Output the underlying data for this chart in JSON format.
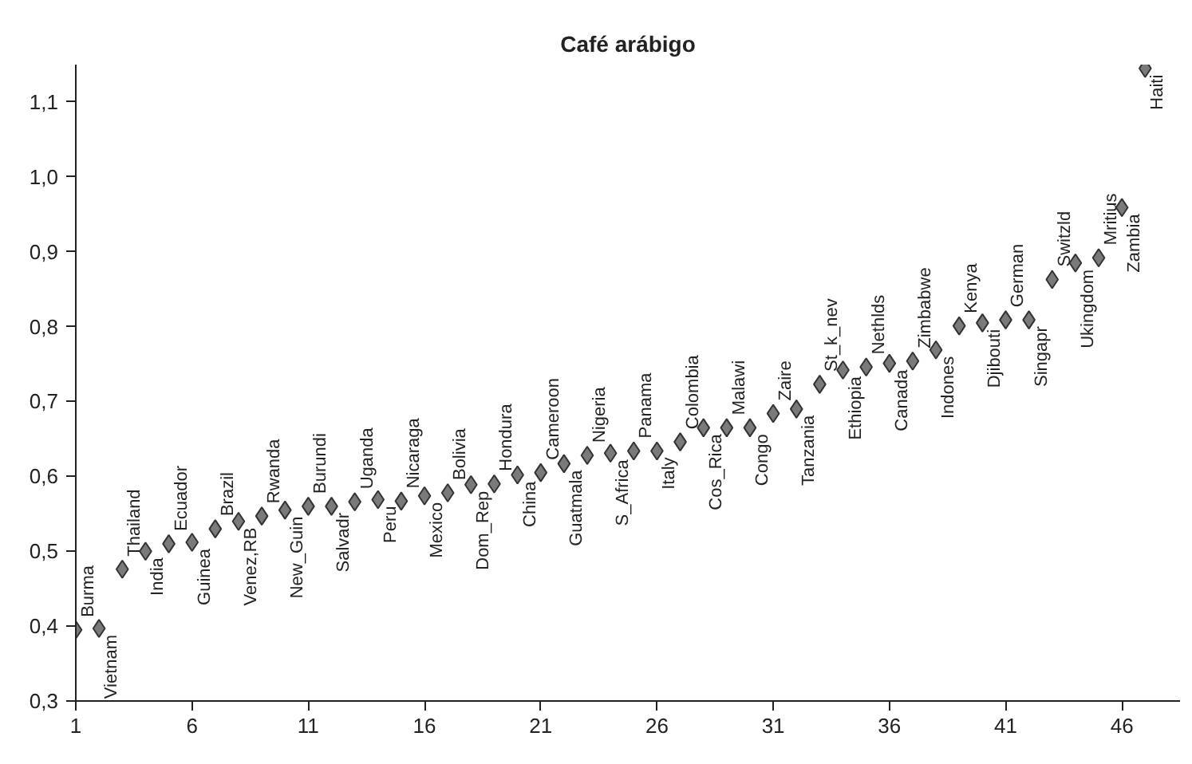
{
  "chart_data": {
    "type": "scatter",
    "title": "Café arábigo",
    "x": [
      1,
      2,
      3,
      4,
      5,
      6,
      7,
      8,
      9,
      10,
      11,
      12,
      13,
      14,
      15,
      16,
      17,
      18,
      19,
      20,
      21,
      22,
      23,
      24,
      25,
      26,
      27,
      28,
      29,
      30,
      31,
      32,
      33,
      34,
      35,
      36,
      37,
      38,
      39,
      40,
      41,
      42,
      43,
      44,
      45,
      46,
      47
    ],
    "series": [
      {
        "color": "#7a7a7a",
        "values": [
          0.395,
          0.397,
          0.476,
          0.5,
          0.51,
          0.512,
          0.53,
          0.54,
          0.547,
          0.555,
          0.56,
          0.56,
          0.566,
          0.569,
          0.567,
          0.574,
          0.578,
          0.589,
          0.59,
          0.602,
          0.605,
          0.617,
          0.628,
          0.631,
          0.634,
          0.634,
          0.646,
          0.665,
          0.665,
          0.665,
          0.684,
          0.69,
          0.723,
          0.742,
          0.746,
          0.751,
          0.754,
          0.769,
          0.801,
          0.805,
          0.809,
          0.809,
          0.863,
          0.885,
          0.892,
          0.959,
          1.145
        ],
        "value_labels": [
          "Burma",
          "Vietnam",
          "Thailand",
          "India",
          "Ecuador",
          "Guinea",
          "Brazil",
          "Venez,RB",
          "Rwanda",
          "New_Guin",
          "Burundi",
          "Salvadr",
          "Uganda",
          "Peru",
          "Nicaraga",
          "Mexico",
          "Bolivia",
          "Dom_Rep",
          "Hondura",
          "China",
          "Cameroon",
          "Guatmala",
          "Nigeria",
          "S_Africa",
          "Panama",
          "Italy",
          "Colombia",
          "Cos_Rica",
          "Malawi",
          "Congo",
          "Zaire",
          "Tanzania",
          "St_k_nev",
          "Ethiopia",
          "Nethlds",
          "Canada",
          "Zimbabwe",
          "Indones",
          "Kenya",
          "Djibouti",
          "German",
          "Singapr",
          "Switzld",
          "Ukingdom",
          "Mritius",
          "Zambia",
          "Haiti"
        ]
      }
    ],
    "xlim": [
      1,
      48.5
    ],
    "ylim": [
      0.3,
      1.15
    ],
    "xticks": [
      1,
      6,
      11,
      16,
      21,
      26,
      31,
      36,
      41,
      46
    ],
    "yticks": [
      {
        "value": 0.3,
        "label": "0,3"
      },
      {
        "value": 0.4,
        "label": "0,4"
      },
      {
        "value": 0.5,
        "label": "0,5"
      },
      {
        "value": 0.6,
        "label": "0,6"
      },
      {
        "value": 0.7,
        "label": "0,7"
      },
      {
        "value": 0.8,
        "label": "0,8"
      },
      {
        "value": 0.9,
        "label": "0,9"
      },
      {
        "value": 1.0,
        "label": "1,0"
      },
      {
        "value": 1.1,
        "label": "1,1"
      }
    ],
    "marker": "diamond",
    "grid": false
  }
}
